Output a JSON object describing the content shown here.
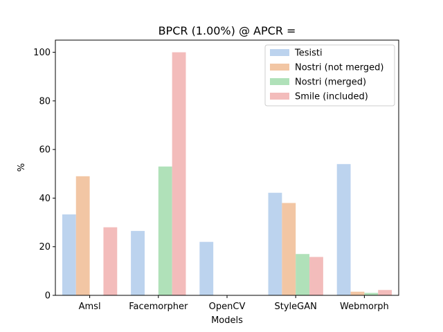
{
  "chart_data": {
    "type": "bar",
    "title": "BPCR (1.00%) @ APCR =",
    "xlabel": "Models",
    "ylabel": "%",
    "ylim": [
      0,
      105
    ],
    "yticks": [
      0,
      20,
      40,
      60,
      80,
      100
    ],
    "categories": [
      "Amsl",
      "Facemorpher",
      "OpenCV",
      "StyleGAN",
      "Webmorph"
    ],
    "series": [
      {
        "name": "Tesisti",
        "color": "#bcd3ee",
        "values": [
          33.3,
          26.5,
          22.0,
          42.2,
          54.0
        ]
      },
      {
        "name": "Nostri (not merged)",
        "color": "#f2c6a4",
        "values": [
          49.0,
          0,
          0,
          38.0,
          1.5
        ]
      },
      {
        "name": "Nostri (merged)",
        "color": "#b0e1b9",
        "values": [
          0,
          53.0,
          0,
          17.0,
          1.0
        ]
      },
      {
        "name": "Smile (included)",
        "color": "#f3bcbb",
        "values": [
          28.0,
          100.0,
          0,
          15.8,
          2.2
        ]
      }
    ],
    "legend_position": "top-right",
    "grid": false
  }
}
